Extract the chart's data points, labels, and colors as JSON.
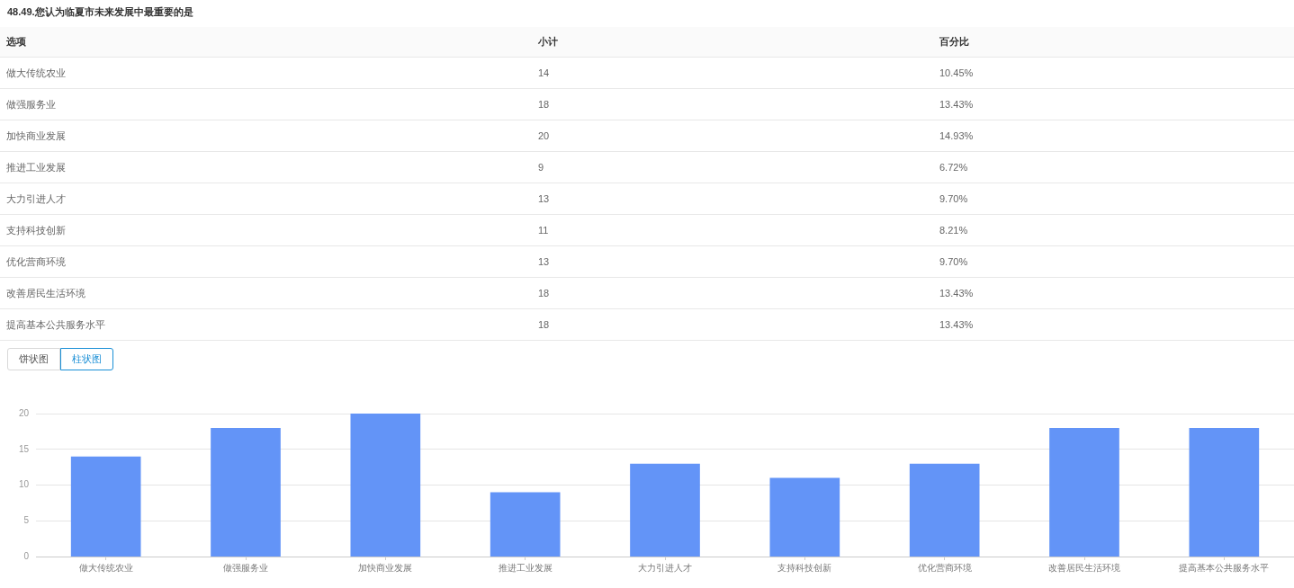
{
  "chart_data": {
    "type": "bar",
    "title": "48.49.您认为临夏市未来发展中最重要的是",
    "categories": [
      "做大传统农业",
      "做强服务业",
      "加快商业发展",
      "推进工业发展",
      "大力引进人才",
      "支持科技创新",
      "优化营商环境",
      "改善居民生活环境",
      "提高基本公共服务水平"
    ],
    "values": [
      14,
      18,
      20,
      9,
      13,
      11,
      13,
      18,
      18
    ],
    "color": "#6394f7",
    "ylim": [
      0,
      20
    ],
    "yticks": [
      0,
      5,
      10,
      15,
      20
    ],
    "grid": "y",
    "annotations": [
      "选项",
      "小计",
      "百分比",
      "14",
      "10.45%",
      "18",
      "13.43%",
      "20",
      "14.93%",
      "9",
      "6.72%",
      "13",
      "9.70%",
      "11",
      "8.21%",
      "13",
      "9.70%",
      "18",
      "13.43%",
      "18",
      "13.43%",
      "饼状图",
      "柱状图"
    ]
  }
}
